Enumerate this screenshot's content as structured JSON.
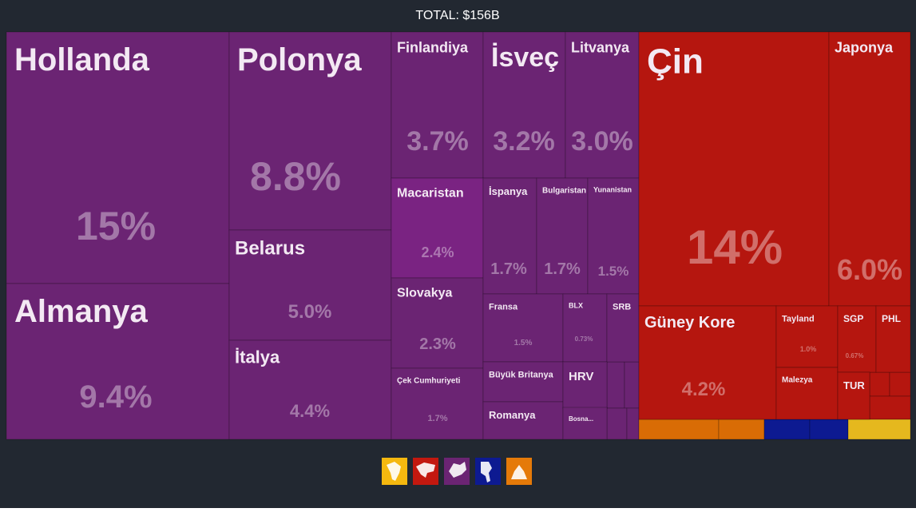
{
  "chart_data": {
    "type": "treemap",
    "title": "TOTAL: $156B",
    "items": [
      {
        "name": "Hollanda",
        "value": 15,
        "value_label": "15%",
        "color": "#6b2473"
      },
      {
        "name": "Almanya",
        "value": 9.4,
        "value_label": "9.4%",
        "color": "#6b2473"
      },
      {
        "name": "Polonya",
        "value": 8.8,
        "value_label": "8.8%",
        "color": "#6b2473"
      },
      {
        "name": "Belarus",
        "value": 5.0,
        "value_label": "5.0%",
        "color": "#6b2473"
      },
      {
        "name": "İtalya",
        "value": 4.4,
        "value_label": "4.4%",
        "color": "#6b2473"
      },
      {
        "name": "Finlandiya",
        "value": 3.7,
        "value_label": "3.7%",
        "color": "#6b2473"
      },
      {
        "name": "İsveç",
        "value": 3.2,
        "value_label": "3.2%",
        "color": "#6b2473"
      },
      {
        "name": "Litvanya",
        "value": 3.0,
        "value_label": "3.0%",
        "color": "#6b2473"
      },
      {
        "name": "Macaristan",
        "value": 2.4,
        "value_label": "2.4%",
        "color": "#7a2382"
      },
      {
        "name": "Slovakya",
        "value": 2.3,
        "value_label": "2.3%",
        "color": "#6b2473"
      },
      {
        "name": "Çek Cumhuriyeti",
        "value": 1.7,
        "value_label": "1.7%",
        "color": "#6b2473"
      },
      {
        "name": "İspanya",
        "value": 1.7,
        "value_label": "1.7%",
        "color": "#6b2473"
      },
      {
        "name": "Bulgaristan",
        "value": 1.7,
        "value_label": "1.7%",
        "color": "#6b2473"
      },
      {
        "name": "Yunanistan",
        "value": 1.5,
        "value_label": "1.5%",
        "color": "#6b2473"
      },
      {
        "name": "Fransa",
        "value": 1.5,
        "value_label": "1.5%",
        "color": "#6b2473"
      },
      {
        "name": "BLX",
        "value": 0.73,
        "value_label": "0.73%",
        "color": "#6b2473"
      },
      {
        "name": "SRB",
        "color": "#6b2473"
      },
      {
        "name": "Büyük Britanya",
        "color": "#6b2473"
      },
      {
        "name": "Romanya",
        "color": "#6b2473"
      },
      {
        "name": "HRV",
        "color": "#6b2473"
      },
      {
        "name": "Bosna...",
        "color": "#6b2473"
      },
      {
        "name": "Çin",
        "value": 14,
        "value_label": "14%",
        "color": "#b5160f"
      },
      {
        "name": "Japonya",
        "value": 6.0,
        "value_label": "6.0%",
        "color": "#b5160f"
      },
      {
        "name": "Güney Kore",
        "value": 4.2,
        "value_label": "4.2%",
        "color": "#b5160f"
      },
      {
        "name": "Tayland",
        "value": 1.0,
        "value_label": "1.0%",
        "color": "#b5160f"
      },
      {
        "name": "Malezya",
        "color": "#b5160f"
      },
      {
        "name": "SGP",
        "value": 0.67,
        "value_label": "0.67%",
        "color": "#b5160f"
      },
      {
        "name": "PHL",
        "color": "#b5160f"
      },
      {
        "name": "TUR",
        "color": "#b5160f"
      }
    ]
  }
}
